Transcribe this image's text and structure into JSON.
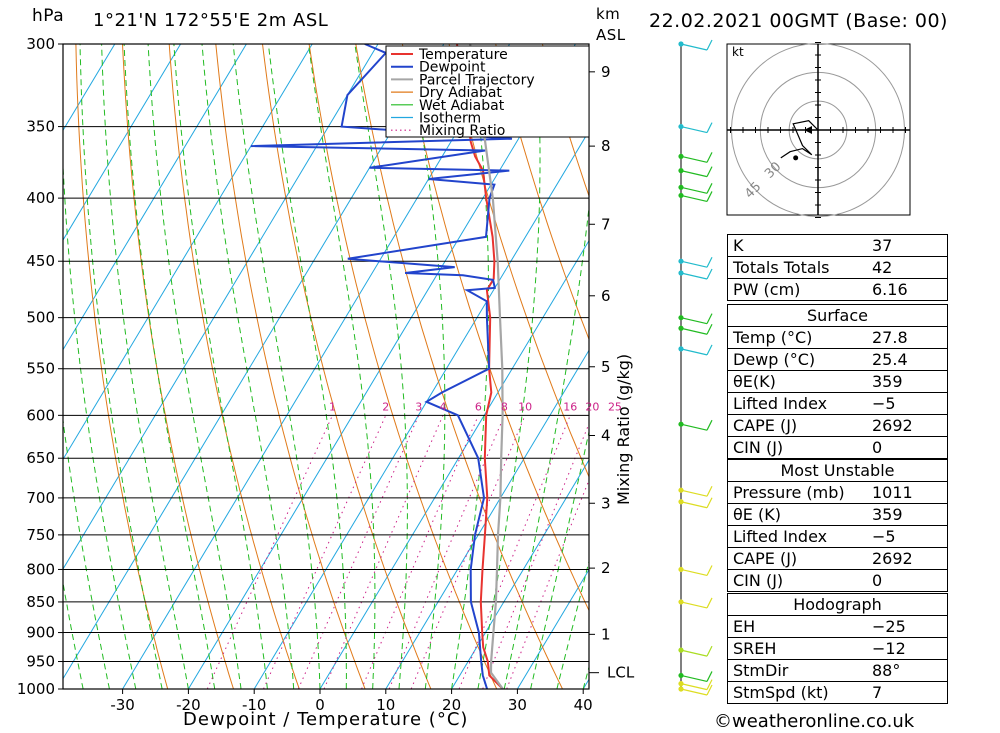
{
  "header": {
    "hpa_label": "hPa",
    "location": "1°21'N  172°55'E  2m  ASL",
    "km_label": "km",
    "asl_label": "ASL",
    "datetime": "22.02.2021  00GMT  (Base: 00)"
  },
  "chart_data": {
    "type": "line",
    "title": "1°21'N 172°55'E 2m ASL",
    "xlabel": "Dewpoint / Temperature (°C)",
    "ylabel": "hPa",
    "xlim": [
      -40,
      40
    ],
    "ylim": [
      1000,
      300
    ],
    "x_ticks": [
      -30,
      -20,
      -10,
      0,
      10,
      20,
      30,
      40
    ],
    "pressure_levels": [
      300,
      350,
      400,
      450,
      500,
      550,
      600,
      650,
      700,
      750,
      800,
      850,
      900,
      950,
      1000
    ],
    "km_ticks": [
      {
        "km": "1",
        "p": 903
      },
      {
        "km": "2",
        "p": 798
      },
      {
        "km": "3",
        "p": 707
      },
      {
        "km": "4",
        "p": 623
      },
      {
        "km": "5",
        "p": 548
      },
      {
        "km": "6",
        "p": 480
      },
      {
        "km": "7",
        "p": 420
      },
      {
        "km": "8",
        "p": 363
      },
      {
        "km": "9",
        "p": 316
      }
    ],
    "lcl_label": "LCL",
    "lcl_pressure": 970,
    "mixing_ratio_label": "Mixing Ratio (g/kg)",
    "mixing_ratio_values": [
      "1",
      "2",
      "3",
      "4",
      "6",
      "8",
      "10",
      "16",
      "20",
      "25"
    ],
    "legend": [
      "Temperature",
      "Dewpoint",
      "Parcel Trajectory",
      "Dry Adiabat",
      "Wet Adiabat",
      "Isotherm",
      "Mixing Ratio"
    ],
    "legend_position": "top-right",
    "series": [
      {
        "name": "Temperature",
        "color": "#e8332f",
        "points": [
          [
            1000,
            27.8
          ],
          [
            975,
            24.5
          ],
          [
            950,
            23.0
          ],
          [
            925,
            21.0
          ],
          [
            900,
            19.5
          ],
          [
            850,
            16.5
          ],
          [
            800,
            13.8
          ],
          [
            750,
            11.0
          ],
          [
            700,
            8.0
          ],
          [
            650,
            4.0
          ],
          [
            600,
            0.3
          ],
          [
            575,
            -1.0
          ],
          [
            550,
            -3.5
          ],
          [
            500,
            -8.0
          ],
          [
            475,
            -11.0
          ],
          [
            465,
            -11.0
          ],
          [
            450,
            -12.5
          ],
          [
            430,
            -15.0
          ],
          [
            400,
            -19.5
          ],
          [
            380,
            -22.5
          ],
          [
            370,
            -25.0
          ],
          [
            360,
            -27.0
          ],
          [
            345,
            -29.5
          ],
          [
            320,
            -34.0
          ],
          [
            305,
            -37.0
          ],
          [
            300,
            -38.0
          ]
        ]
      },
      {
        "name": "Dewpoint",
        "color": "#2244cc",
        "points": [
          [
            1000,
            25.4
          ],
          [
            975,
            23.5
          ],
          [
            950,
            22.0
          ],
          [
            900,
            19.0
          ],
          [
            850,
            15.0
          ],
          [
            800,
            12.0
          ],
          [
            750,
            9.5
          ],
          [
            700,
            7.5
          ],
          [
            650,
            3.0
          ],
          [
            600,
            -4.0
          ],
          [
            585,
            -10.0
          ],
          [
            575,
            -8.5
          ],
          [
            550,
            -3.5
          ],
          [
            500,
            -8.5
          ],
          [
            485,
            -10.0
          ],
          [
            475,
            -14.0
          ],
          [
            473,
            -10.0
          ],
          [
            466,
            -11.0
          ],
          [
            462,
            -16.0
          ],
          [
            460,
            -25.0
          ],
          [
            455,
            -18.0
          ],
          [
            448,
            -35.0
          ],
          [
            430,
            -16.0
          ],
          [
            400,
            -19.0
          ],
          [
            390,
            -19.5
          ],
          [
            386,
            -30.0
          ],
          [
            380,
            -18.5
          ],
          [
            378,
            -40.0
          ],
          [
            366,
            -24.0
          ],
          [
            363,
            -60.0
          ],
          [
            358,
            -21.0
          ],
          [
            350,
            -48.0
          ],
          [
            330,
            -50.0
          ],
          [
            305,
            -48.0
          ],
          [
            300,
            -52.0
          ]
        ]
      },
      {
        "name": "Parcel Trajectory",
        "color": "#a6a6a6",
        "points": [
          [
            1000,
            27.8
          ],
          [
            970,
            24.5
          ],
          [
            950,
            23.5
          ],
          [
            900,
            21.2
          ],
          [
            850,
            18.8
          ],
          [
            800,
            16.0
          ],
          [
            750,
            13.0
          ],
          [
            700,
            10.0
          ],
          [
            650,
            6.5
          ],
          [
            600,
            2.8
          ],
          [
            550,
            -1.5
          ],
          [
            500,
            -6.5
          ],
          [
            450,
            -12.0
          ],
          [
            400,
            -18.5
          ],
          [
            350,
            -26.5
          ],
          [
            300,
            -36.0
          ]
        ]
      }
    ]
  },
  "hodograph": {
    "unit_label": "kt",
    "ring_labels": [
      "30",
      "45"
    ],
    "trace": [
      [
        0,
        0
      ],
      [
        -3,
        3
      ],
      [
        -8,
        2
      ],
      [
        -5,
        -5
      ],
      [
        -2,
        -8
      ],
      [
        -5,
        -6
      ],
      [
        -9,
        -7
      ],
      [
        -12,
        -9
      ]
    ],
    "storm_motion": [
      -12,
      -9
    ]
  },
  "indices": {
    "general": [
      {
        "label": "K",
        "value": "37"
      },
      {
        "label": "Totals Totals",
        "value": "42"
      },
      {
        "label": "PW (cm)",
        "value": "6.16"
      }
    ],
    "surface": {
      "title": "Surface",
      "rows": [
        {
          "label": "Temp (°C)",
          "value": "27.8"
        },
        {
          "label": "Dewp (°C)",
          "value": "25.4"
        },
        {
          "label": "θE(K)",
          "value": "359"
        },
        {
          "label": "Lifted Index",
          "value": "−5"
        },
        {
          "label": "CAPE (J)",
          "value": "2692"
        },
        {
          "label": "CIN (J)",
          "value": "0"
        }
      ]
    },
    "most_unstable": {
      "title": "Most Unstable",
      "rows": [
        {
          "label": "Pressure (mb)",
          "value": "1011"
        },
        {
          "label": "θE (K)",
          "value": "359"
        },
        {
          "label": "Lifted Index",
          "value": "−5"
        },
        {
          "label": "CAPE (J)",
          "value": "2692"
        },
        {
          "label": "CIN (J)",
          "value": "0"
        }
      ]
    },
    "hodograph": {
      "title": "Hodograph",
      "rows": [
        {
          "label": "EH",
          "value": "−25"
        },
        {
          "label": "SREH",
          "value": "−12"
        },
        {
          "label": "StmDir",
          "value": "88°"
        },
        {
          "label": "StmSpd (kt)",
          "value": "7"
        }
      ]
    }
  },
  "wind_profile": {
    "barbs": [
      {
        "p": 300,
        "color": "#22bbcc"
      },
      {
        "p": 350,
        "color": "#22bbcc"
      },
      {
        "p": 370,
        "color": "#22bb22"
      },
      {
        "p": 380,
        "color": "#22bb22"
      },
      {
        "p": 392,
        "color": "#22bb22"
      },
      {
        "p": 398,
        "color": "#22bb22"
      },
      {
        "p": 450,
        "color": "#22bbcc"
      },
      {
        "p": 460,
        "color": "#22bbcc"
      },
      {
        "p": 500,
        "color": "#22bb22"
      },
      {
        "p": 510,
        "color": "#22bb22"
      },
      {
        "p": 530,
        "color": "#22bbcc"
      },
      {
        "p": 610,
        "color": "#22bb22"
      },
      {
        "p": 690,
        "color": "#dddd22"
      },
      {
        "p": 705,
        "color": "#dddd22"
      },
      {
        "p": 800,
        "color": "#dddd22"
      },
      {
        "p": 850,
        "color": "#dddd22"
      },
      {
        "p": 930,
        "color": "#aadd22"
      },
      {
        "p": 975,
        "color": "#22bb22"
      },
      {
        "p": 990,
        "color": "#dddd22"
      },
      {
        "p": 1000,
        "color": "#dddd22"
      }
    ]
  },
  "footer": {
    "copyright": "©weatheronline.co.uk"
  }
}
